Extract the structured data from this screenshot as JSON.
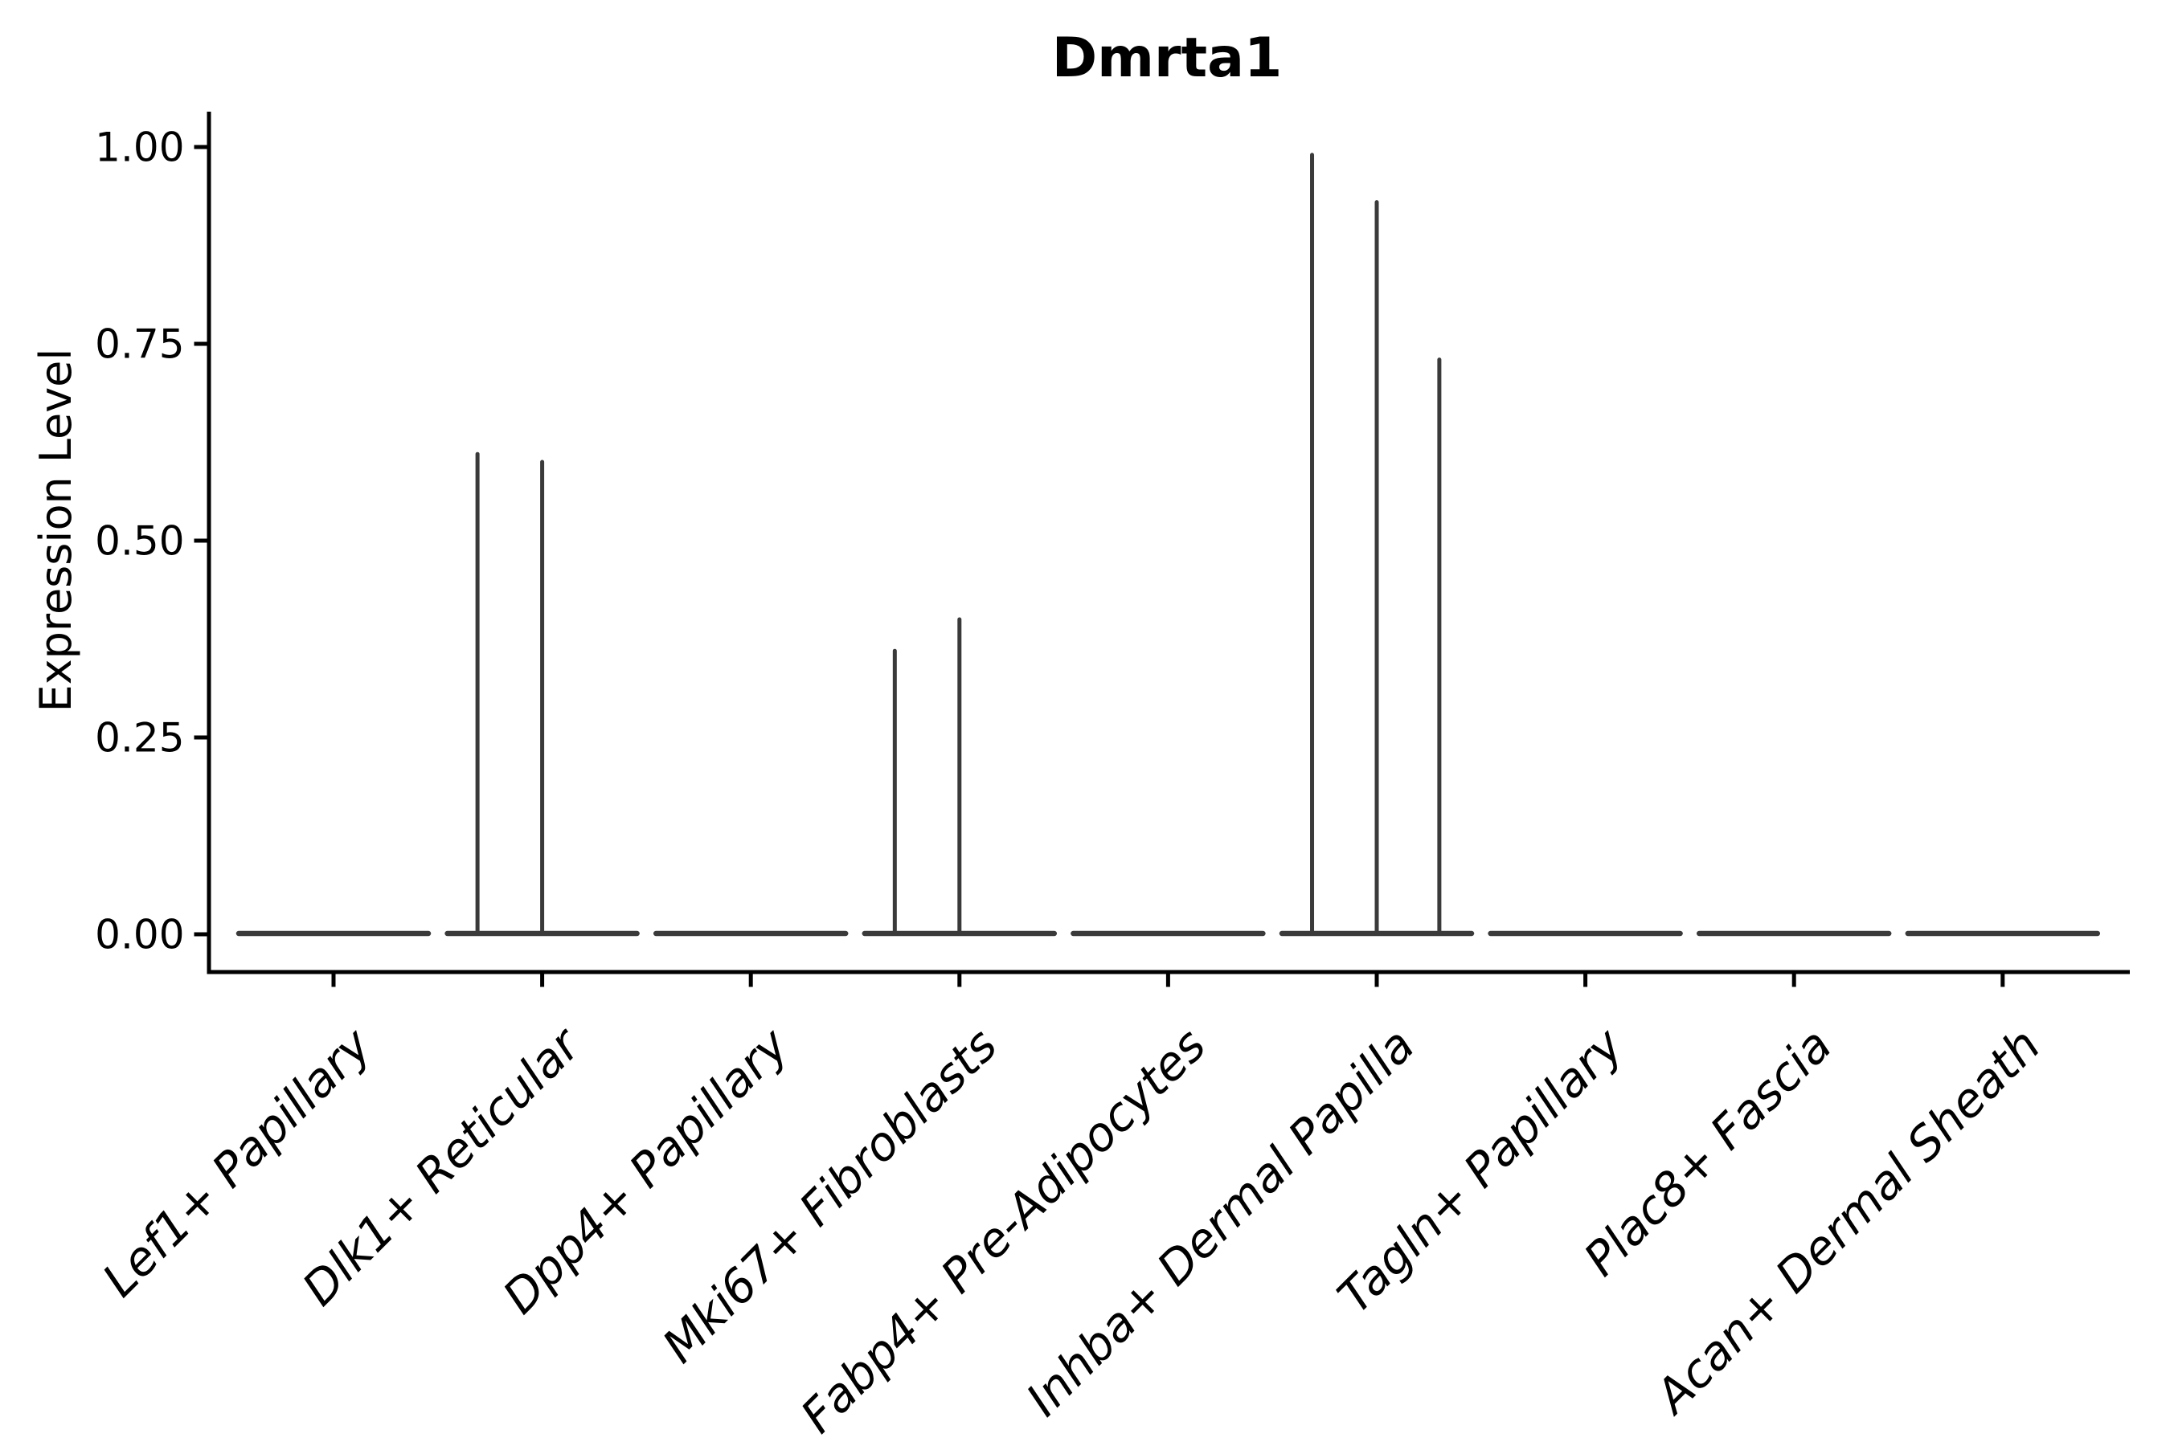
{
  "figure": {
    "background": "#ffffff"
  },
  "chart_data": {
    "type": "violin",
    "title": "Dmrta1",
    "ylabel": "Expression Level",
    "xlabel": "",
    "ylim": [
      0.0,
      1.0
    ],
    "grid": false,
    "legend": false,
    "baseline_value": 0.0,
    "yticks": [
      {
        "label": "0.00",
        "value": 0.0
      },
      {
        "label": "0.25",
        "value": 0.25
      },
      {
        "label": "0.50",
        "value": 0.5
      },
      {
        "label": "0.75",
        "value": 0.75
      },
      {
        "label": "1.00",
        "value": 1.0
      }
    ],
    "categories": [
      "Lef1+ Papillary",
      "Dlk1+ Reticular",
      "Dpp4+ Papillary",
      "Mki67+ Fibroblasts",
      "Fabp4+ Pre-Adipocytes",
      "Inhba+ Dermal Papilla",
      "Tagln+ Papillary",
      "Plac8+ Fascia",
      "Acan+ Dermal Sheath"
    ],
    "violins": [
      {
        "category": "Lef1+ Papillary",
        "baseline": 0.0,
        "spikes": []
      },
      {
        "category": "Dlk1+ Reticular",
        "baseline": 0.0,
        "spikes": [
          {
            "offset_frac": -0.31,
            "value": 0.61
          },
          {
            "offset_frac": 0.0,
            "value": 0.6
          }
        ]
      },
      {
        "category": "Dpp4+ Papillary",
        "baseline": 0.0,
        "spikes": []
      },
      {
        "category": "Mki67+ Fibroblasts",
        "baseline": 0.0,
        "spikes": [
          {
            "offset_frac": -0.31,
            "value": 0.36
          },
          {
            "offset_frac": 0.0,
            "value": 0.4
          }
        ]
      },
      {
        "category": "Fabp4+ Pre-Adipocytes",
        "baseline": 0.0,
        "spikes": []
      },
      {
        "category": "Inhba+ Dermal Papilla",
        "baseline": 0.0,
        "spikes": [
          {
            "offset_frac": -0.31,
            "value": 0.99
          },
          {
            "offset_frac": 0.0,
            "value": 0.93
          },
          {
            "offset_frac": 0.3,
            "value": 0.73
          }
        ]
      },
      {
        "category": "Tagln+ Papillary",
        "baseline": 0.0,
        "spikes": []
      },
      {
        "category": "Plac8+ Fascia",
        "baseline": 0.0,
        "spikes": []
      },
      {
        "category": "Acan+ Dermal Sheath",
        "baseline": 0.0,
        "spikes": []
      }
    ],
    "colors": {
      "violin_stroke": "#3a3a3a",
      "axis": "#000000",
      "text": "#000000",
      "background": "#ffffff"
    }
  }
}
